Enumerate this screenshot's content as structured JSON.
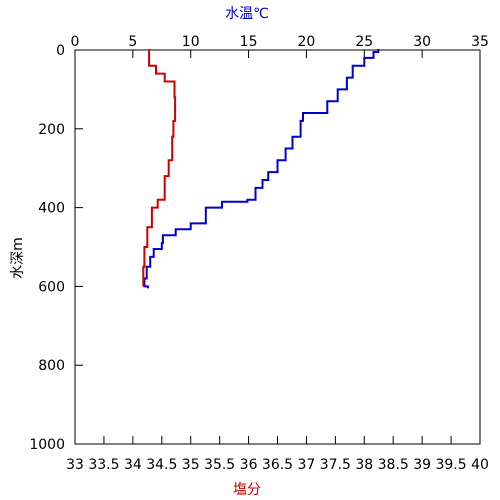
{
  "chart_data": {
    "type": "line",
    "title": "",
    "top_axis": {
      "label": "水温℃",
      "label_color": "#0000cc",
      "range": [
        0,
        35
      ],
      "ticks": [
        "0",
        "5",
        "10",
        "15",
        "20",
        "25",
        "30",
        "35"
      ]
    },
    "bottom_axis": {
      "label": "塩分",
      "label_color": "#cc0000",
      "range": [
        33,
        40
      ],
      "ticks": [
        "33",
        "33.5",
        "34",
        "34.5",
        "35",
        "35.5",
        "36",
        "36.5",
        "37",
        "37.5",
        "38",
        "38.5",
        "39",
        "39.5",
        "40"
      ]
    },
    "left_axis": {
      "label": "水深m",
      "range": [
        0,
        1000
      ],
      "inverted": true,
      "ticks": [
        "0",
        "200",
        "400",
        "600",
        "800",
        "1000"
      ]
    },
    "grid": false,
    "legend": "none",
    "series": [
      {
        "axis": "top",
        "color": "#0000cc",
        "points": [
          [
            26.3,
            0
          ],
          [
            26.2,
            5
          ],
          [
            25.8,
            20
          ],
          [
            25.0,
            40
          ],
          [
            24.0,
            70
          ],
          [
            23.5,
            100
          ],
          [
            22.7,
            130
          ],
          [
            21.8,
            160
          ],
          [
            19.7,
            180
          ],
          [
            19.5,
            220
          ],
          [
            18.8,
            250
          ],
          [
            18.2,
            280
          ],
          [
            17.5,
            310
          ],
          [
            16.7,
            330
          ],
          [
            16.2,
            350
          ],
          [
            15.6,
            380
          ],
          [
            14.9,
            385
          ],
          [
            12.7,
            400
          ],
          [
            11.3,
            440
          ],
          [
            10.0,
            455
          ],
          [
            8.7,
            470
          ],
          [
            7.6,
            490
          ],
          [
            7.5,
            505
          ],
          [
            6.8,
            525
          ],
          [
            6.5,
            550
          ],
          [
            6.2,
            580
          ],
          [
            6.0,
            600
          ],
          [
            6.3,
            605
          ]
        ]
      },
      {
        "axis": "bottom",
        "color": "#cc0000",
        "points": [
          [
            34.27,
            0
          ],
          [
            34.28,
            40
          ],
          [
            34.4,
            60
          ],
          [
            34.55,
            80
          ],
          [
            34.72,
            120
          ],
          [
            34.73,
            180
          ],
          [
            34.7,
            220
          ],
          [
            34.68,
            280
          ],
          [
            34.62,
            320
          ],
          [
            34.55,
            380
          ],
          [
            34.43,
            400
          ],
          [
            34.33,
            450
          ],
          [
            34.25,
            500
          ],
          [
            34.2,
            550
          ],
          [
            34.18,
            600
          ]
        ]
      }
    ]
  }
}
